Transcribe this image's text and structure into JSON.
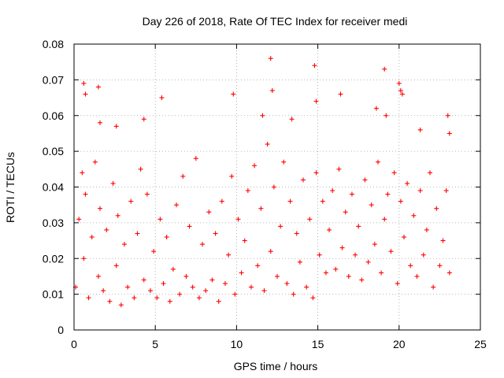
{
  "chart_data": {
    "type": "scatter",
    "title": "Day 226 of 2018, Rate Of TEC Index for receiver medi",
    "xlabel": "GPS time / hours",
    "ylabel": "ROTI / TECUs",
    "xlim": [
      0,
      25
    ],
    "ylim": [
      0,
      0.08
    ],
    "x_ticks": [
      "0",
      "5",
      "10",
      "15",
      "20",
      "25"
    ],
    "y_ticks": [
      "0",
      "0.01",
      "0.02",
      "0.03",
      "0.04",
      "0.05",
      "0.06",
      "0.07",
      "0.08"
    ],
    "grid": true,
    "marker": "+",
    "color": "#ff0000",
    "series": [
      {
        "x": [
          0.1,
          0.3,
          0.5,
          0.6,
          0.7,
          0.9,
          1.1,
          1.3,
          1.5,
          1.6,
          1.8,
          2.0,
          2.2,
          2.4,
          2.6,
          2.7,
          2.9,
          3.1,
          3.3,
          3.5,
          3.7,
          3.9,
          4.1,
          4.3,
          4.5,
          4.7,
          4.9,
          5.1,
          5.3,
          5.5,
          5.7,
          5.9,
          6.1,
          6.3,
          6.5,
          6.7,
          6.9,
          7.1,
          7.3,
          7.5,
          7.7,
          7.9,
          8.1,
          8.3,
          8.5,
          8.7,
          8.9,
          9.1,
          9.3,
          9.5,
          9.7,
          9.9,
          10.1,
          10.3,
          10.5,
          10.7,
          10.9,
          11.1,
          11.3,
          11.5,
          11.7,
          11.9,
          12.1,
          12.3,
          12.5,
          12.7,
          12.9,
          13.1,
          13.3,
          13.5,
          13.7,
          13.9,
          14.1,
          14.3,
          14.5,
          14.7,
          14.9,
          15.1,
          15.3,
          15.5,
          15.7,
          15.9,
          16.1,
          16.3,
          16.5,
          16.7,
          16.9,
          17.1,
          17.3,
          17.5,
          17.7,
          17.9,
          18.1,
          18.3,
          18.5,
          18.7,
          18.9,
          19.1,
          19.3,
          19.5,
          19.7,
          19.9,
          20.1,
          20.3,
          20.5,
          20.7,
          20.9,
          21.1,
          21.3,
          21.5,
          21.7,
          21.9,
          22.1,
          22.3,
          22.5,
          22.7,
          22.9,
          23.1,
          0.6,
          0.7,
          1.5,
          1.6,
          2.6,
          4.3,
          5.4,
          9.8,
          11.6,
          12.1,
          12.2,
          13.4,
          14.8,
          14.9,
          16.4,
          18.6,
          19.1,
          19.2,
          20.0,
          20.1,
          20.2,
          21.3,
          23.0,
          23.1
        ],
        "y": [
          0.012,
          0.031,
          0.044,
          0.02,
          0.038,
          0.009,
          0.026,
          0.047,
          0.015,
          0.034,
          0.011,
          0.028,
          0.008,
          0.041,
          0.018,
          0.032,
          0.007,
          0.024,
          0.012,
          0.036,
          0.009,
          0.027,
          0.045,
          0.014,
          0.038,
          0.011,
          0.022,
          0.009,
          0.031,
          0.013,
          0.026,
          0.008,
          0.017,
          0.035,
          0.01,
          0.043,
          0.015,
          0.029,
          0.012,
          0.048,
          0.009,
          0.024,
          0.011,
          0.033,
          0.014,
          0.027,
          0.008,
          0.036,
          0.013,
          0.021,
          0.043,
          0.01,
          0.031,
          0.016,
          0.025,
          0.039,
          0.012,
          0.046,
          0.018,
          0.034,
          0.011,
          0.052,
          0.022,
          0.04,
          0.015,
          0.029,
          0.047,
          0.013,
          0.036,
          0.01,
          0.027,
          0.019,
          0.042,
          0.012,
          0.031,
          0.009,
          0.044,
          0.021,
          0.036,
          0.016,
          0.028,
          0.039,
          0.017,
          0.045,
          0.023,
          0.033,
          0.015,
          0.038,
          0.021,
          0.029,
          0.014,
          0.042,
          0.019,
          0.035,
          0.024,
          0.047,
          0.016,
          0.031,
          0.038,
          0.022,
          0.044,
          0.013,
          0.036,
          0.026,
          0.041,
          0.018,
          0.032,
          0.015,
          0.039,
          0.021,
          0.028,
          0.044,
          0.012,
          0.034,
          0.018,
          0.025,
          0.039,
          0.016,
          0.069,
          0.066,
          0.068,
          0.058,
          0.057,
          0.059,
          0.065,
          0.066,
          0.06,
          0.076,
          0.067,
          0.059,
          0.074,
          0.064,
          0.066,
          0.062,
          0.073,
          0.06,
          0.069,
          0.067,
          0.066,
          0.056,
          0.06,
          0.055
        ]
      }
    ]
  }
}
